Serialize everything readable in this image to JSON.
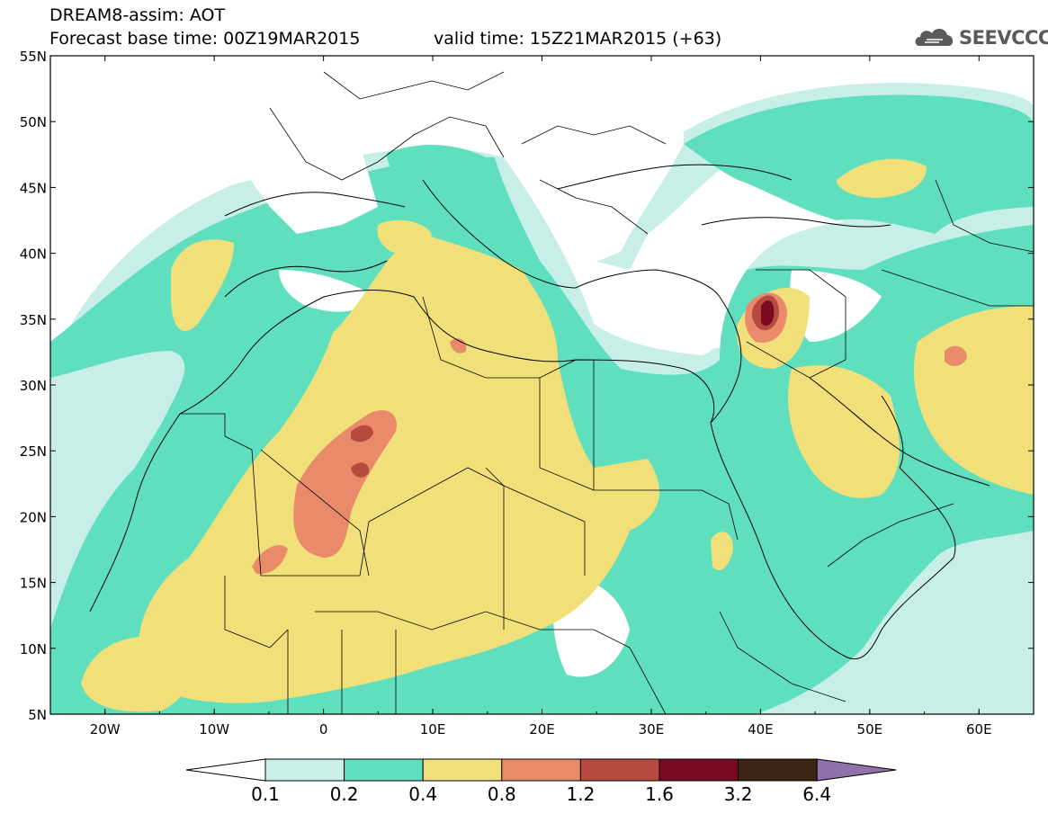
{
  "header": {
    "line1": "DREAM8-assim: AOT",
    "line2_base": "Forecast base time: 00Z19MAR2015",
    "line2_valid": "valid time: 15Z21MAR2015 (+63)"
  },
  "logo": {
    "text": "SEEVCCC",
    "icon": "cloud-icon"
  },
  "map": {
    "lat_labels": [
      "55N",
      "50N",
      "45N",
      "40N",
      "35N",
      "30N",
      "25N",
      "20N",
      "15N",
      "10N",
      "5N"
    ],
    "lon_labels": [
      "20W",
      "10W",
      "0",
      "10E",
      "20E",
      "30E",
      "40E",
      "50E",
      "60E"
    ],
    "lat_range": [
      5,
      55
    ],
    "lon_range": [
      -25,
      65
    ]
  },
  "legend": {
    "labels": [
      "0.1",
      "0.2",
      "0.4",
      "0.8",
      "1.2",
      "1.6",
      "3.2",
      "6.4"
    ],
    "colors": [
      "#ffffff",
      "#c7efe8",
      "#5fdfbe",
      "#f1e079",
      "#e98a6b",
      "#b64a3f",
      "#7a0a22",
      "#3d2414",
      "#9171a9"
    ]
  },
  "palette": {
    "c1": "#c7efe8",
    "c2": "#5fdfbe",
    "c3": "#f1e079",
    "c4": "#e98a6b",
    "c5": "#b64a3f",
    "c6": "#7a0a22"
  }
}
